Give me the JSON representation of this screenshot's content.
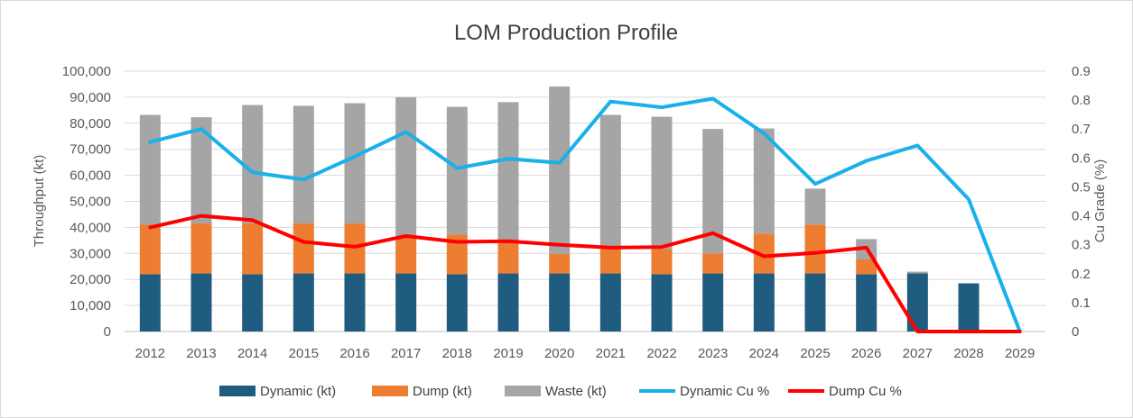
{
  "chart_data": {
    "type": "bar",
    "title": "LOM Production Profile",
    "ylabel": "Throughput (kt)",
    "y2label": "Cu Grade (%)",
    "ylim": [
      0,
      100000
    ],
    "y2lim": [
      0,
      0.9
    ],
    "yticks": [
      "0",
      "10,000",
      "20,000",
      "30,000",
      "40,000",
      "50,000",
      "60,000",
      "70,000",
      "80,000",
      "90,000",
      "100,000"
    ],
    "y2ticks": [
      "0",
      "0.1",
      "0.2",
      "0.3",
      "0.4",
      "0.5",
      "0.6",
      "0.7",
      "0.8",
      "0.9"
    ],
    "grid": true,
    "legend_position": "bottom",
    "categories": [
      "2012",
      "2013",
      "2014",
      "2015",
      "2016",
      "2017",
      "2018",
      "2019",
      "2020",
      "2021",
      "2022",
      "2023",
      "2024",
      "2025",
      "2026",
      "2027",
      "2028",
      "2029"
    ],
    "bar_series": [
      {
        "name": "Dynamic (kt)",
        "color": "#1f5c80",
        "values": [
          22000,
          22300,
          22000,
          22300,
          22300,
          22300,
          22000,
          22300,
          22300,
          22300,
          22000,
          22300,
          22300,
          22300,
          22000,
          22300,
          18500,
          0
        ]
      },
      {
        "name": "Dump (kt)",
        "color": "#ed7d31",
        "values": [
          19000,
          19200,
          19500,
          19200,
          19200,
          13700,
          15300,
          13000,
          7500,
          9700,
          9700,
          7700,
          15300,
          18800,
          5700,
          0,
          0,
          0
        ]
      },
      {
        "name": "Waste (kt)",
        "color": "#a5a5a5",
        "values": [
          42200,
          40800,
          45500,
          45200,
          46200,
          54000,
          49000,
          52800,
          64300,
          51200,
          50800,
          47800,
          40400,
          13800,
          7800,
          700,
          0,
          0
        ]
      }
    ],
    "line_series": [
      {
        "name": "Dynamic Cu %",
        "color": "#1ab0ea",
        "values": [
          0.655,
          0.7,
          0.55,
          0.525,
          0.605,
          0.69,
          0.565,
          0.597,
          0.583,
          0.795,
          0.775,
          0.805,
          0.685,
          0.51,
          0.59,
          0.643,
          0.457,
          0.0
        ]
      },
      {
        "name": "Dump Cu %",
        "color": "#ff0000",
        "values": [
          0.36,
          0.4,
          0.385,
          0.31,
          0.293,
          0.33,
          0.31,
          0.312,
          0.3,
          0.29,
          0.292,
          0.34,
          0.26,
          0.272,
          0.29,
          0.0,
          0.0,
          0.0
        ]
      }
    ]
  }
}
